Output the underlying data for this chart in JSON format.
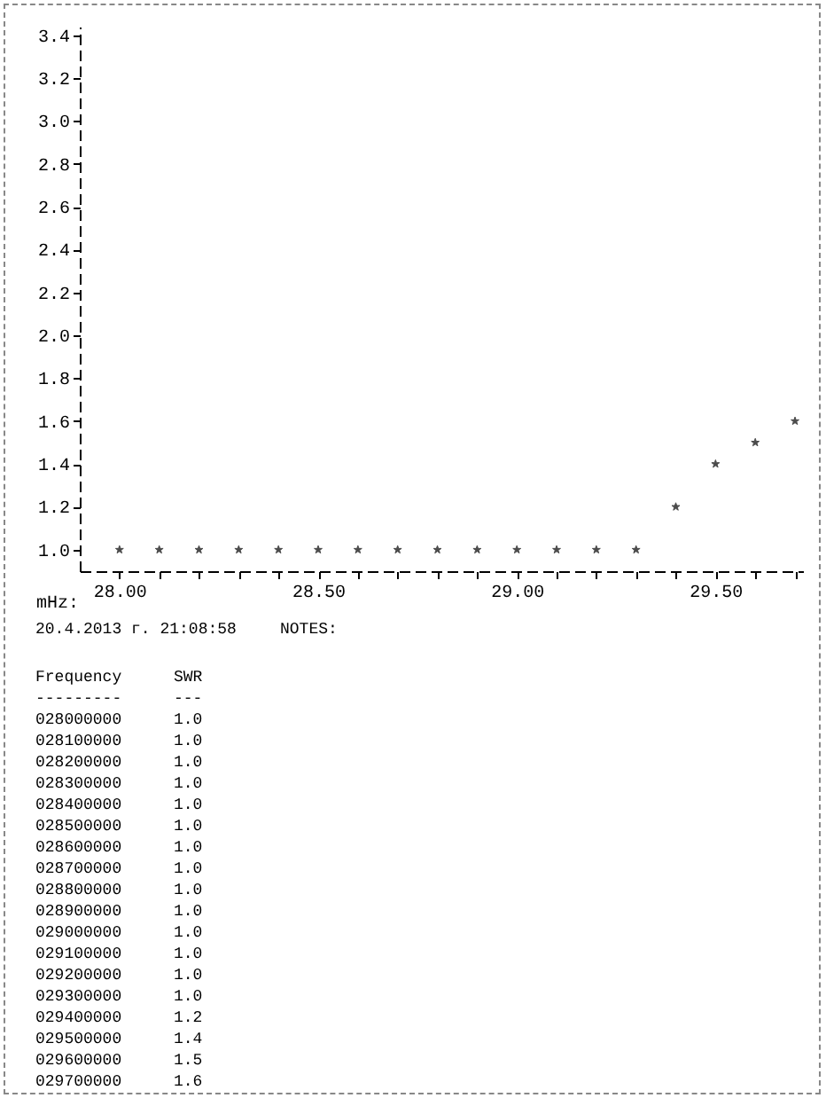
{
  "chart_data": {
    "type": "scatter",
    "xlabel": "mHz:",
    "x": [
      28.0,
      28.1,
      28.2,
      28.3,
      28.4,
      28.5,
      28.6,
      28.7,
      28.8,
      28.9,
      29.0,
      29.1,
      29.2,
      29.3,
      29.4,
      29.5,
      29.6,
      29.7
    ],
    "values": [
      1.0,
      1.0,
      1.0,
      1.0,
      1.0,
      1.0,
      1.0,
      1.0,
      1.0,
      1.0,
      1.0,
      1.0,
      1.0,
      1.0,
      1.2,
      1.4,
      1.5,
      1.6
    ],
    "color": "#000000",
    "marker": "star",
    "grid": false,
    "xlim": [
      27.9,
      29.72
    ],
    "xticks": [
      {
        "value": 28.0,
        "label": "28.00"
      },
      {
        "value": 28.1,
        "label": null
      },
      {
        "value": 28.2,
        "label": null
      },
      {
        "value": 28.3,
        "label": null
      },
      {
        "value": 28.4,
        "label": null
      },
      {
        "value": 28.5,
        "label": "28.50"
      },
      {
        "value": 28.6,
        "label": null
      },
      {
        "value": 28.7,
        "label": null
      },
      {
        "value": 28.8,
        "label": null
      },
      {
        "value": 28.9,
        "label": null
      },
      {
        "value": 29.0,
        "label": "29.00"
      },
      {
        "value": 29.1,
        "label": null
      },
      {
        "value": 29.2,
        "label": null
      },
      {
        "value": 29.3,
        "label": null
      },
      {
        "value": 29.4,
        "label": null
      },
      {
        "value": 29.5,
        "label": "29.50"
      },
      {
        "value": 29.6,
        "label": null
      },
      {
        "value": 29.7,
        "label": null
      }
    ],
    "ylim": [
      0.9,
      3.44
    ],
    "yticks": [
      {
        "value": 1.0,
        "label": "1.0"
      },
      {
        "value": 1.2,
        "label": "1.2"
      },
      {
        "value": 1.4,
        "label": "1.4"
      },
      {
        "value": 1.6,
        "label": "1.6"
      },
      {
        "value": 1.8,
        "label": "1.8"
      },
      {
        "value": 2.0,
        "label": "2.0"
      },
      {
        "value": 2.2,
        "label": "2.2"
      },
      {
        "value": 2.4,
        "label": "2.4"
      },
      {
        "value": 2.6,
        "label": "2.6"
      },
      {
        "value": 2.8,
        "label": "2.8"
      },
      {
        "value": 3.0,
        "label": "3.0"
      },
      {
        "value": 3.2,
        "label": "3.2"
      },
      {
        "value": 3.4,
        "label": "3.4"
      }
    ],
    "annotations": [
      "20.4.2013 г. 21:08:58",
      "NOTES:",
      "Frequency",
      "SWR",
      "---------",
      "---",
      "028000000",
      "028100000",
      "028200000",
      "028300000",
      "028400000",
      "028500000",
      "028600000",
      "028700000",
      "028800000",
      "028900000",
      "029000000",
      "029100000",
      "029200000",
      "029300000",
      "029400000",
      "029500000",
      "029600000",
      "029700000",
      "1.0",
      "1.0",
      "1.0",
      "1.0",
      "1.0",
      "1.0",
      "1.0",
      "1.0",
      "1.0",
      "1.0",
      "1.0",
      "1.0",
      "1.0",
      "1.0",
      "1.2",
      "1.4",
      "1.5",
      "1.6"
    ]
  }
}
